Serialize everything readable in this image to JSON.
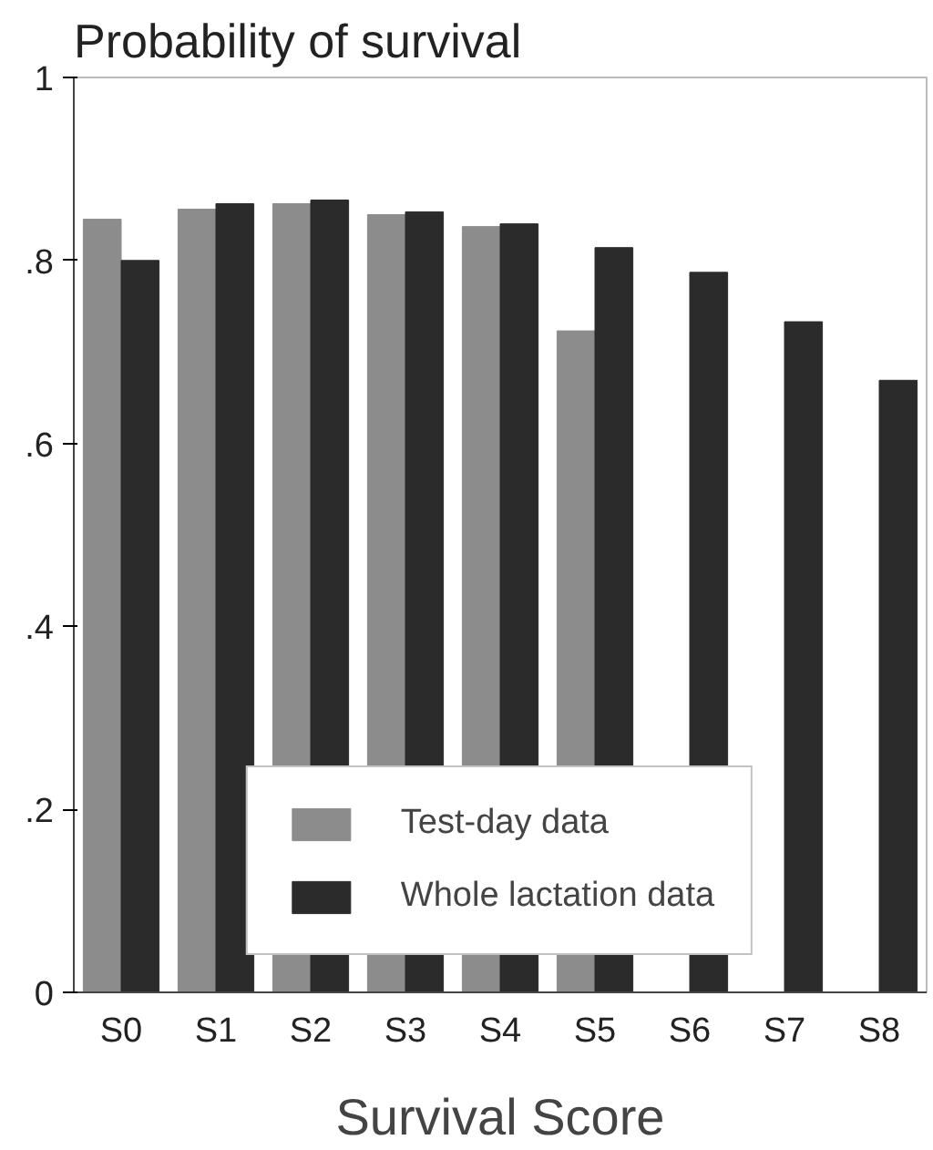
{
  "chart_data": {
    "type": "bar",
    "title": "Probability of survival",
    "xlabel": "Survival Score",
    "categories": [
      "S0",
      "S1",
      "S2",
      "S3",
      "S4",
      "S5",
      "S6",
      "S7",
      "S8"
    ],
    "series": [
      {
        "name": "Test-day data",
        "color": "#8c8c8c",
        "values": [
          0.845,
          0.856,
          0.862,
          0.85,
          0.837,
          0.723,
          null,
          null,
          null
        ]
      },
      {
        "name": "Whole lactation data",
        "color": "#2b2b2b",
        "values": [
          0.8,
          0.862,
          0.866,
          0.853,
          0.84,
          0.814,
          0.787,
          0.733,
          0.669
        ]
      }
    ],
    "ylim": [
      0,
      1
    ],
    "yticks": [
      {
        "value": 0,
        "label": "0"
      },
      {
        "value": 0.2,
        "label": ".2"
      },
      {
        "value": 0.4,
        "label": ".4"
      },
      {
        "value": 0.6,
        "label": ".6"
      },
      {
        "value": 0.8,
        "label": ".8"
      },
      {
        "value": 1,
        "label": "1"
      }
    ],
    "grid": false,
    "legend": "bottom"
  }
}
